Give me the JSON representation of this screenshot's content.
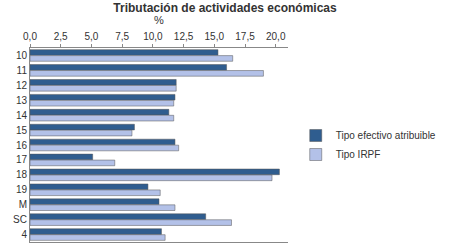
{
  "chart_data": {
    "type": "bar",
    "orientation": "horizontal",
    "title": "Tributación de actividades económicas",
    "x_label": "%",
    "categories": [
      "10",
      "11",
      "12",
      "13",
      "14",
      "15",
      "16",
      "17",
      "18",
      "19",
      "M",
      "SC",
      "4"
    ],
    "series": [
      {
        "name": "Tipo efectivo atribuible",
        "color": "#2f5d8f",
        "values": [
          15.3,
          16.0,
          11.9,
          11.8,
          11.3,
          8.5,
          11.8,
          5.1,
          20.3,
          9.6,
          10.5,
          14.3,
          10.7
        ]
      },
      {
        "name": "Tipo IRPF",
        "color": "#b3c1e8",
        "values": [
          16.5,
          19.0,
          11.9,
          11.7,
          11.7,
          8.3,
          12.1,
          6.9,
          19.7,
          10.6,
          11.8,
          16.4,
          11.0
        ]
      }
    ],
    "xlim": [
      0,
      21
    ],
    "xticks": [
      {
        "value": 0,
        "label": "0,0"
      },
      {
        "value": 2.5,
        "label": "2,5"
      },
      {
        "value": 5,
        "label": "5,0"
      },
      {
        "value": 7.5,
        "label": "7,5"
      },
      {
        "value": 10,
        "label": "10,0"
      },
      {
        "value": 12.5,
        "label": "12,5"
      },
      {
        "value": 15,
        "label": "15,0"
      },
      {
        "value": 17.5,
        "label": "17,5"
      },
      {
        "value": 20,
        "label": "20,0"
      }
    ],
    "grid": false,
    "legend": "right"
  }
}
